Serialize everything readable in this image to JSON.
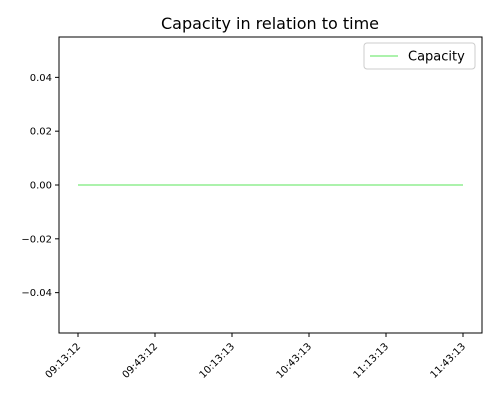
{
  "chart_data": {
    "type": "line",
    "title": "Capacity in relation to time",
    "xlabel": "",
    "ylabel": "",
    "x": [
      "09:13:12",
      "09:43:12",
      "10:13:13",
      "10:43:13",
      "11:13:13",
      "11:43:13"
    ],
    "series": [
      {
        "name": "Capacity",
        "color": "#90ee90",
        "values": [
          0,
          0,
          0,
          0,
          0,
          0
        ]
      }
    ],
    "ylim": [
      -0.055,
      0.055
    ],
    "yticks": [
      -0.04,
      -0.02,
      0.0,
      0.02,
      0.04
    ],
    "ytick_labels": [
      "−0.04",
      "−0.02",
      "0.00",
      "0.02",
      "0.04"
    ],
    "legend": {
      "position": "top-right"
    },
    "grid": false
  }
}
